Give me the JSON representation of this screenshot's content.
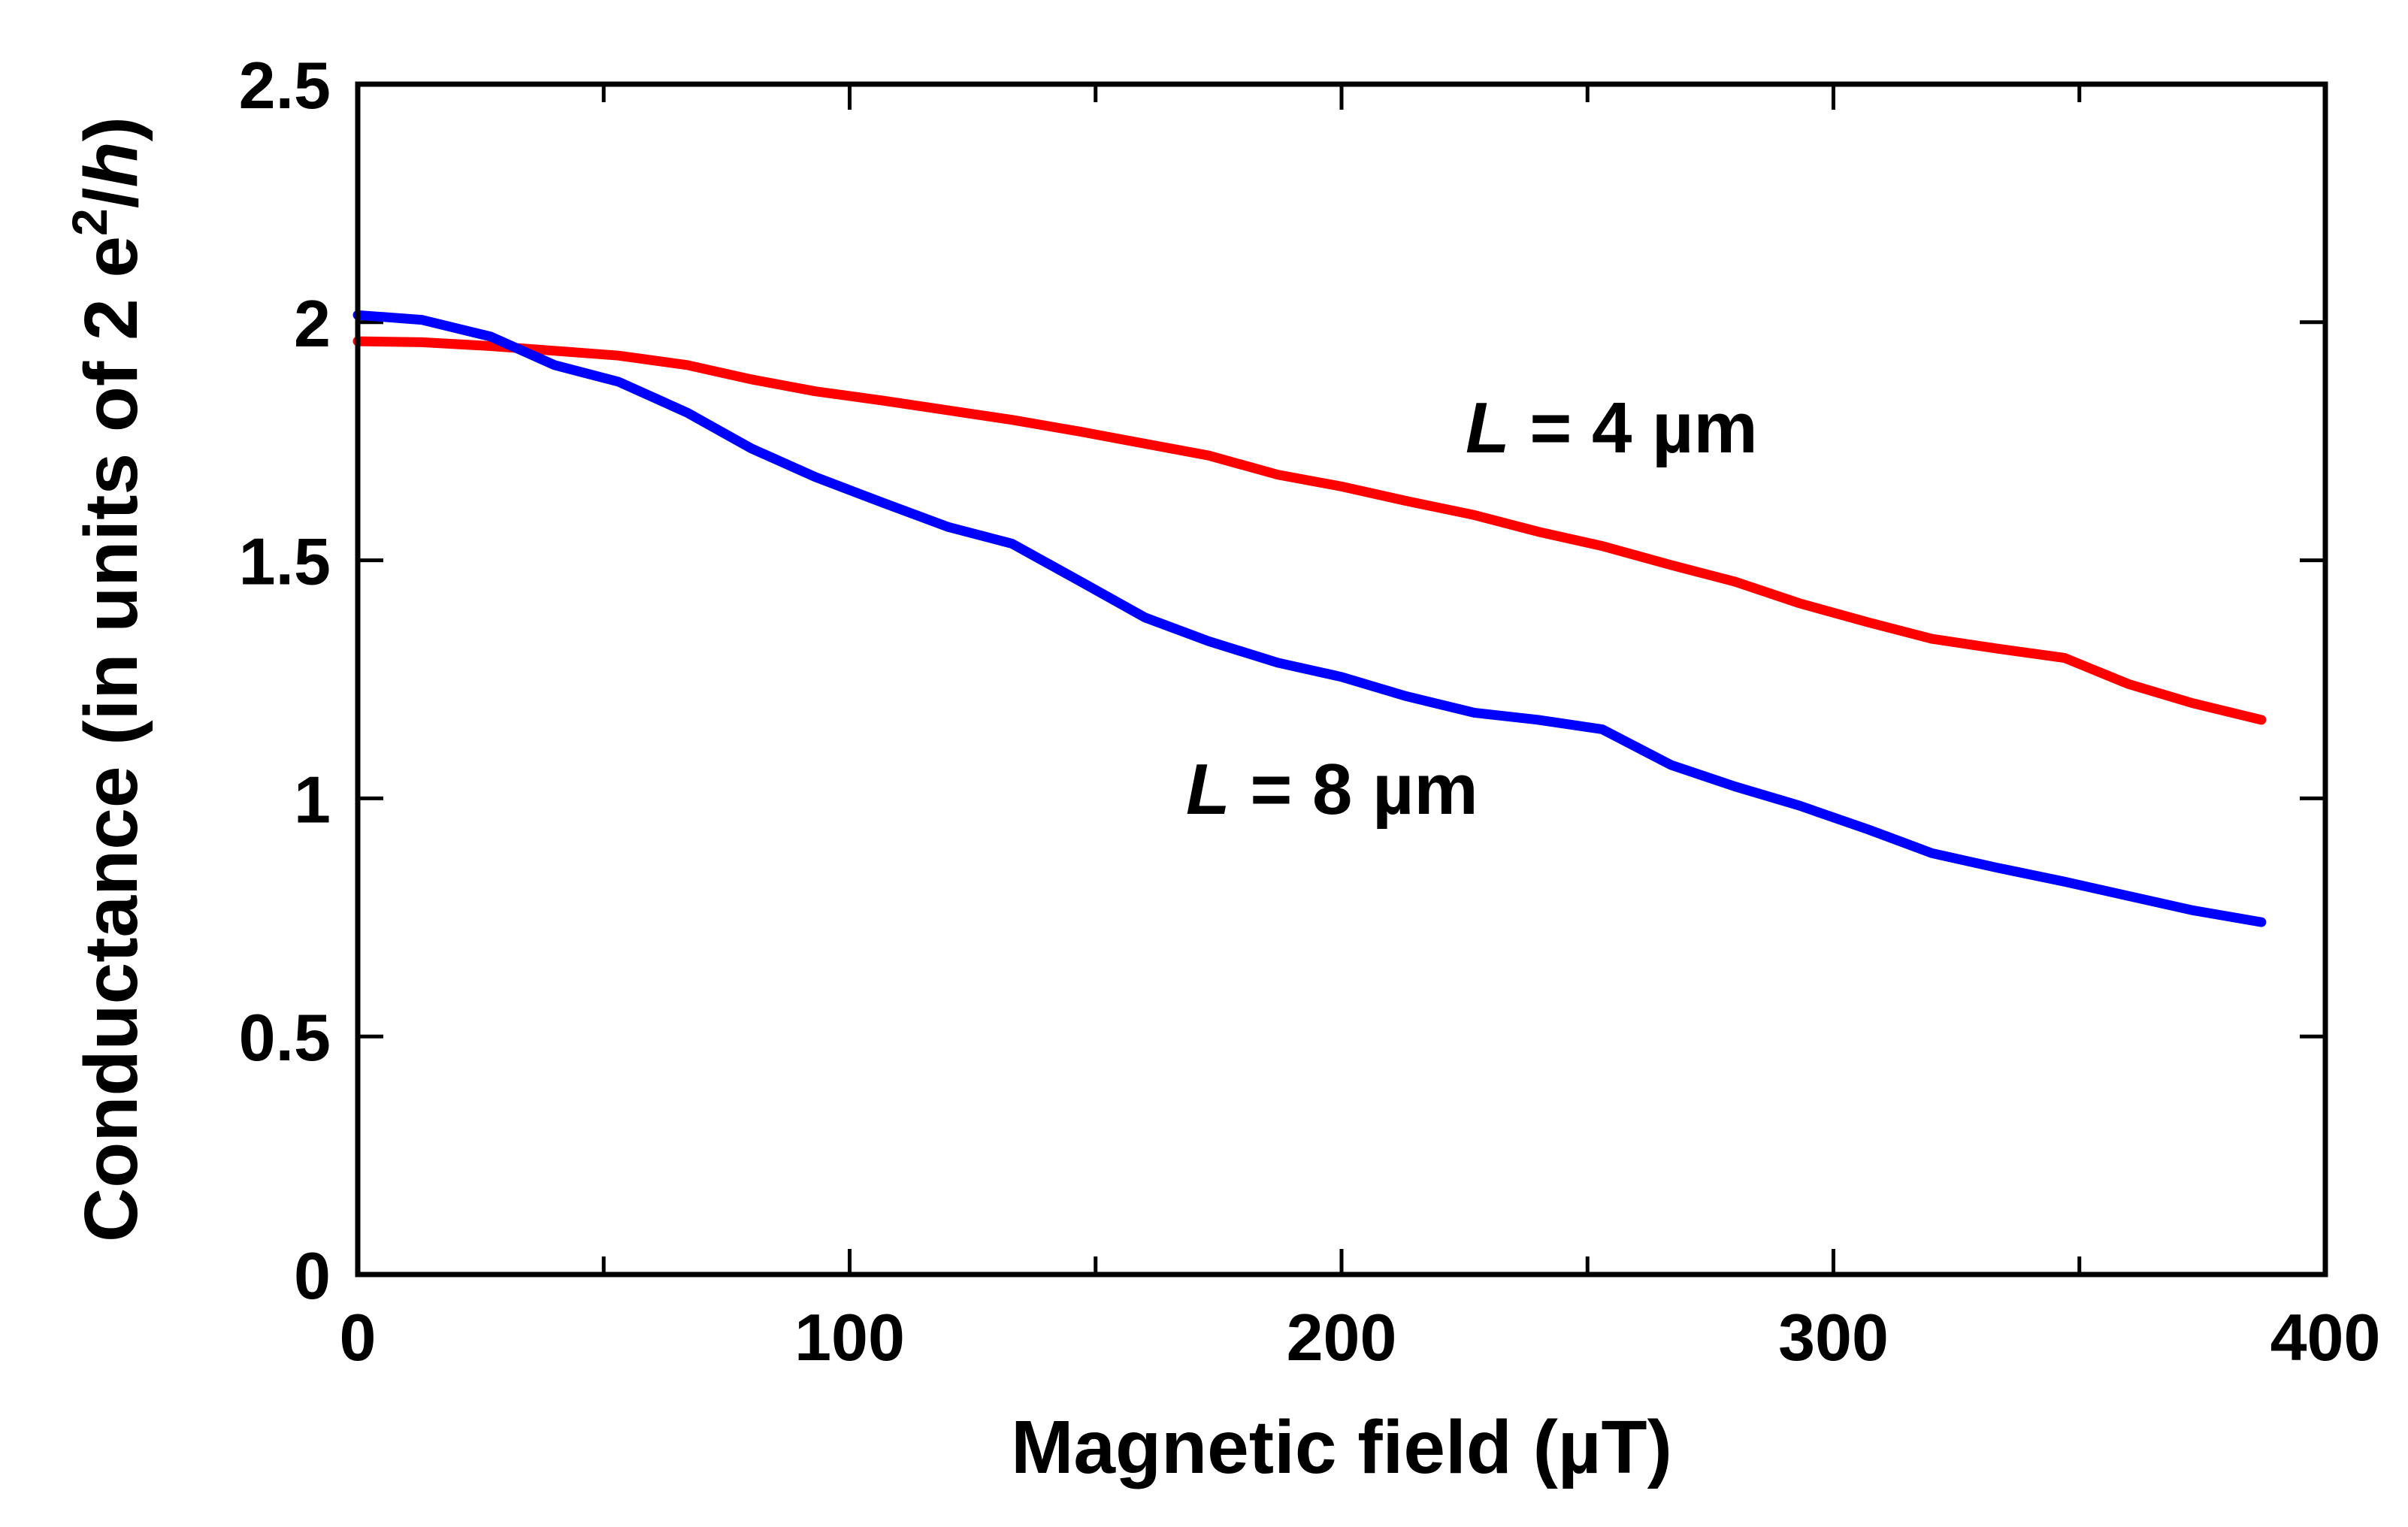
{
  "chart_data": {
    "type": "line",
    "title": "",
    "xlabel": "Magnetic field  (µT)",
    "ylabel": {
      "main": "Conductance  (in units of 2 e",
      "superscript": "2",
      "separator": "/",
      "italic": "h",
      "close": ")"
    },
    "xlim": [
      0,
      400
    ],
    "ylim": [
      0,
      2.5
    ],
    "xticks": [
      0,
      100,
      200,
      300,
      400
    ],
    "xtick_labels": [
      "0",
      "100",
      "200",
      "300",
      "400"
    ],
    "xticks_minor": [
      50,
      150,
      250,
      350
    ],
    "yticks": [
      0,
      0.5,
      1,
      1.5,
      2,
      2.5
    ],
    "ytick_labels": [
      "0",
      "0.5",
      "1",
      "1.5",
      "2",
      "2.5"
    ],
    "grid": false,
    "series": [
      {
        "name": "L = 4 µm",
        "color": "#ff0000",
        "x": [
          0,
          13,
          27,
          40,
          53,
          67,
          80,
          93,
          107,
          120,
          133,
          147,
          160,
          173,
          187,
          200,
          213,
          227,
          240,
          253,
          267,
          280,
          293,
          307,
          320,
          333,
          347,
          360,
          373,
          387
        ],
        "y": [
          1.96,
          1.958,
          1.95,
          1.94,
          1.93,
          1.91,
          1.88,
          1.855,
          1.835,
          1.815,
          1.795,
          1.77,
          1.745,
          1.72,
          1.68,
          1.655,
          1.625,
          1.595,
          1.56,
          1.53,
          1.49,
          1.455,
          1.41,
          1.37,
          1.335,
          1.315,
          1.295,
          1.24,
          1.2,
          1.165
        ]
      },
      {
        "name": "L = 8 µm",
        "color": "#0000ff",
        "x": [
          0,
          13,
          27,
          40,
          53,
          67,
          80,
          93,
          107,
          120,
          133,
          147,
          160,
          173,
          187,
          200,
          213,
          227,
          240,
          253,
          267,
          280,
          293,
          307,
          320,
          333,
          347,
          360,
          373,
          387
        ],
        "y": [
          2.015,
          2.005,
          1.97,
          1.91,
          1.875,
          1.81,
          1.735,
          1.675,
          1.62,
          1.57,
          1.535,
          1.455,
          1.38,
          1.33,
          1.285,
          1.255,
          1.215,
          1.18,
          1.165,
          1.145,
          1.07,
          1.025,
          0.985,
          0.935,
          0.885,
          0.855,
          0.825,
          0.795,
          0.765,
          0.74
        ]
      }
    ],
    "annotations": [
      {
        "italic": "L",
        "text": " = 4 µm",
        "x": 226,
        "y": 1.74,
        "series": "L = 4 µm"
      },
      {
        "italic": "L",
        "text": " = 8 µm",
        "x": 169,
        "y": 0.98,
        "series": "L = 8 µm"
      }
    ]
  }
}
